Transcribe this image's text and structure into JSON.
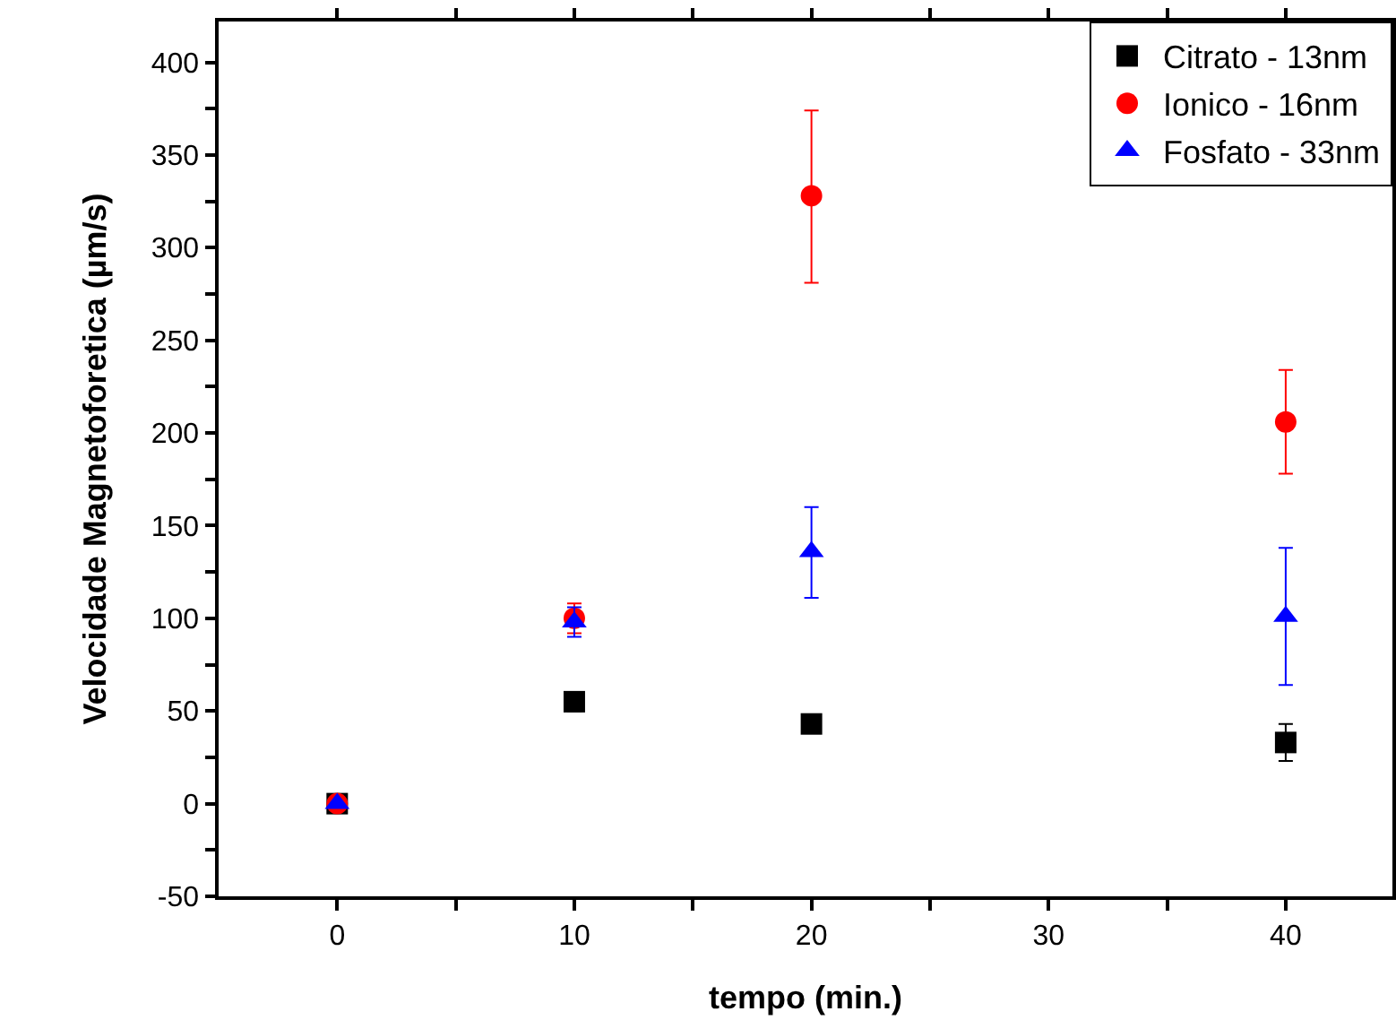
{
  "chart_data": {
    "type": "scatter",
    "xlabel": "tempo (min.)",
    "ylabel": "Velocidade Magnetoforetica (µm/s)",
    "x": [
      0,
      10,
      20,
      40
    ],
    "series": [
      {
        "name": "Citrato - 13nm",
        "color": "#000000",
        "marker": "square",
        "values": [
          0,
          55,
          43,
          33
        ],
        "errors": [
          null,
          [
            50,
            59
          ],
          null,
          [
            23,
            43
          ]
        ]
      },
      {
        "name": "Ionico - 16nm",
        "color": "#ff0000",
        "marker": "circle",
        "values": [
          0,
          100,
          328,
          206
        ],
        "errors": [
          null,
          [
            92,
            108
          ],
          [
            281,
            374
          ],
          [
            178,
            234
          ]
        ]
      },
      {
        "name": "Fosfato - 33nm",
        "color": "#0000ff",
        "marker": "triangle",
        "values": [
          0,
          98,
          136,
          101
        ],
        "errors": [
          null,
          [
            90,
            106
          ],
          [
            111,
            160
          ],
          [
            64,
            138
          ]
        ]
      }
    ],
    "xlim": [
      -5,
      44.5
    ],
    "xticks": [
      0,
      {
        "value": 5,
        "label": null
      },
      10,
      {
        "value": 15,
        "label": null
      },
      20,
      {
        "value": 25,
        "label": null
      },
      30,
      {
        "value": 35,
        "label": null
      },
      40
    ],
    "ylim": [
      -50,
      422
    ],
    "yticks": [
      -50,
      {
        "value": -25,
        "label": null
      },
      0,
      {
        "value": 25,
        "label": null
      },
      50,
      {
        "value": 75,
        "label": null
      },
      100,
      {
        "value": 125,
        "label": null
      },
      150,
      {
        "value": 175,
        "label": null
      },
      200,
      {
        "value": 225,
        "label": null
      },
      250,
      {
        "value": 275,
        "label": null
      },
      300,
      {
        "value": 325,
        "label": null
      },
      350,
      {
        "value": 375,
        "label": null
      },
      400
    ],
    "grid": false,
    "legend": "top right"
  }
}
